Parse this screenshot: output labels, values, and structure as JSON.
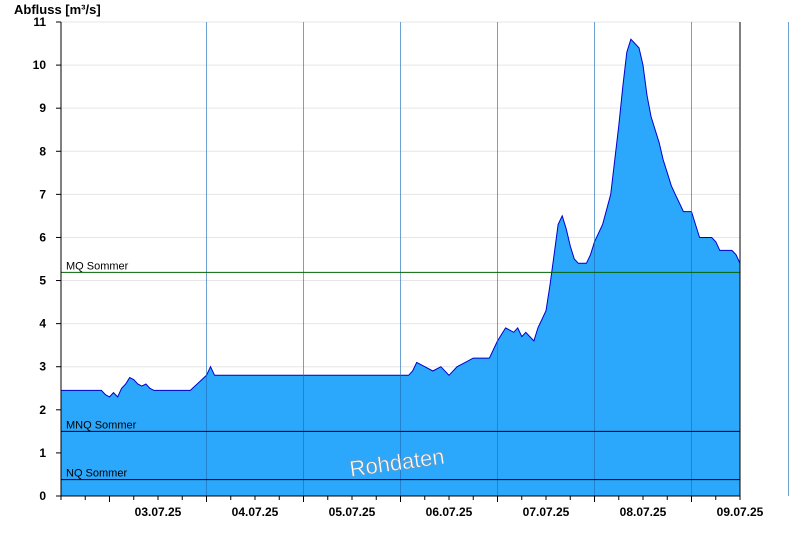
{
  "chart_data": {
    "type": "area",
    "ylabel": "Abfluss [m³/s]",
    "ylim": [
      0,
      11
    ],
    "y_ticks": [
      0,
      1,
      2,
      3,
      4,
      5,
      6,
      7,
      8,
      9,
      10,
      11
    ],
    "x_range_days": [
      "02.07.25 12:00",
      "09.07.25 12:00"
    ],
    "x_tick_labels": [
      "03.07.25",
      "04.07.25",
      "05.07.25",
      "06.07.25",
      "07.07.25",
      "08.07.25",
      "09.07.25"
    ],
    "grid": true,
    "watermark": "Rohdaten",
    "colors": {
      "fill": "#2ba8fc",
      "line": "#0000cc",
      "mq": "#006400",
      "ref": "#000000"
    },
    "reference_lines": [
      {
        "name": "MQ Sommer",
        "value": 5.19
      },
      {
        "name": "MNQ Sommer",
        "value": 1.5
      },
      {
        "name": "NQ Sommer",
        "value": 0.38
      }
    ],
    "series": [
      {
        "x": [
          "02.07.25 12:00",
          "02.07.25 22:00",
          "02.07.25 23:00",
          "03.07.25 00:00",
          "03.07.25 01:00",
          "03.07.25 02:00",
          "03.07.25 03:00",
          "03.07.25 04:00",
          "03.07.25 05:00",
          "03.07.25 06:00",
          "03.07.25 07:00",
          "03.07.25 08:00",
          "03.07.25 09:00",
          "03.07.25 10:00",
          "03.07.25 11:00",
          "03.07.25 12:00",
          "03.07.25 13:00",
          "03.07.25 14:00",
          "03.07.25 15:00",
          "03.07.25 20:00",
          "04.07.25 00:00",
          "04.07.25 01:00",
          "04.07.25 02:00",
          "04.07.25 03:00",
          "04.07.25 04:00",
          "04.07.25 05:00",
          "04.07.25 06:00",
          "04.07.25 12:00",
          "04.07.25 18:00",
          "05.07.25 00:00",
          "05.07.25 06:00",
          "05.07.25 12:00",
          "05.07.25 18:00",
          "06.07.25 00:00",
          "06.07.25 02:00",
          "06.07.25 03:00",
          "06.07.25 04:00",
          "06.07.25 06:00",
          "06.07.25 08:00",
          "06.07.25 10:00",
          "06.07.25 12:00",
          "06.07.25 14:00",
          "06.07.25 16:00",
          "06.07.25 18:00",
          "06.07.25 20:00",
          "06.07.25 22:00",
          "07.07.25 00:00",
          "07.07.25 02:00",
          "07.07.25 04:00",
          "07.07.25 05:00",
          "07.07.25 06:00",
          "07.07.25 07:00",
          "07.07.25 08:00",
          "07.07.25 09:00",
          "07.07.25 10:00",
          "07.07.25 12:00",
          "07.07.25 13:00",
          "07.07.25 14:00",
          "07.07.25 15:00",
          "07.07.25 16:00",
          "07.07.25 17:00",
          "07.07.25 18:00",
          "07.07.25 19:00",
          "07.07.25 20:00",
          "07.07.25 21:00",
          "07.07.25 22:00",
          "07.07.25 23:00",
          "08.07.25 00:00",
          "08.07.25 02:00",
          "08.07.25 04:00",
          "08.07.25 06:00",
          "08.07.25 07:00",
          "08.07.25 08:00",
          "08.07.25 09:00",
          "08.07.25 10:00",
          "08.07.25 11:00",
          "08.07.25 12:00",
          "08.07.25 13:00",
          "08.07.25 14:00",
          "08.07.25 15:00",
          "08.07.25 16:00",
          "08.07.25 17:00",
          "08.07.25 18:00",
          "08.07.25 19:00",
          "08.07.25 20:00",
          "08.07.25 21:00",
          "08.07.25 22:00",
          "08.07.25 23:00",
          "09.07.25 00:00",
          "09.07.25 01:00",
          "09.07.25 02:00",
          "09.07.25 03:00",
          "09.07.25 04:00",
          "09.07.25 05:00",
          "09.07.25 06:00",
          "09.07.25 07:00",
          "09.07.25 08:00",
          "09.07.25 09:00",
          "09.07.25 10:00",
          "09.07.25 11:00",
          "09.07.25 12:00"
        ],
        "y": [
          2.45,
          2.45,
          2.35,
          2.3,
          2.4,
          2.3,
          2.5,
          2.6,
          2.75,
          2.7,
          2.6,
          2.55,
          2.6,
          2.5,
          2.45,
          2.45,
          2.45,
          2.45,
          2.45,
          2.45,
          2.8,
          3.0,
          2.8,
          2.8,
          2.8,
          2.8,
          2.8,
          2.8,
          2.8,
          2.8,
          2.8,
          2.8,
          2.8,
          2.8,
          2.8,
          2.9,
          3.1,
          3.0,
          2.9,
          3.0,
          2.8,
          3.0,
          3.1,
          3.2,
          3.2,
          3.2,
          3.6,
          3.9,
          3.8,
          3.9,
          3.7,
          3.8,
          3.7,
          3.6,
          3.9,
          4.3,
          4.9,
          5.6,
          6.3,
          6.5,
          6.2,
          5.8,
          5.5,
          5.4,
          5.4,
          5.4,
          5.6,
          5.9,
          6.3,
          7.0,
          8.6,
          9.5,
          10.3,
          10.6,
          10.5,
          10.4,
          10.0,
          9.3,
          8.8,
          8.5,
          8.2,
          7.8,
          7.5,
          7.2,
          7.0,
          6.8,
          6.6,
          6.6,
          6.6,
          6.3,
          6.0,
          6.0,
          6.0,
          6.0,
          5.9,
          5.7,
          5.7,
          5.7,
          5.7,
          5.6,
          5.4
        ]
      }
    ]
  }
}
